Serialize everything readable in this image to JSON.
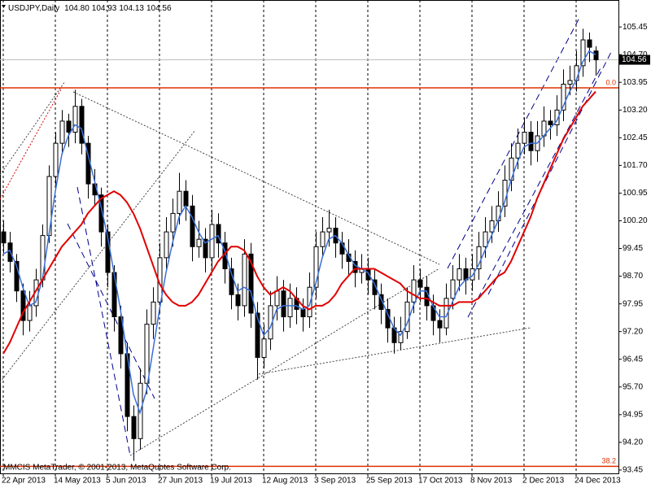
{
  "chart_data": {
    "type": "candlestick",
    "title": "USDJPY,Daily",
    "header_values": [
      "104.80",
      "104.93",
      "104.13",
      "104.56"
    ],
    "footer": "MMCIS MetaTrader, © 2001-2013, MetaQuotes Software Corp.",
    "ylim": [
      93.36,
      106.18
    ],
    "yticks": [
      93.45,
      {
        "value": 94.2,
        "label": "94.20"
      },
      94.95,
      {
        "value": 95.7,
        "label": "95.70"
      },
      96.45,
      {
        "value": 97.2,
        "label": "97.20"
      },
      97.95,
      {
        "value": 98.7,
        "label": "98.70"
      },
      99.45,
      {
        "value": 100.2,
        "label": "100.20"
      },
      100.95,
      {
        "value": 101.7,
        "label": "101.70"
      },
      102.45,
      {
        "value": 103.2,
        "label": "103.20"
      },
      103.95,
      {
        "value": 104.7,
        "label": "104.70"
      },
      105.45
    ],
    "xticks": [
      {
        "value": 0,
        "label": "22 Apr 2013"
      },
      {
        "value": 8,
        "label": "14 May 2013"
      },
      {
        "value": 16,
        "label": "5 Jun 2013"
      },
      {
        "value": 24,
        "label": "27 Jun 2013"
      },
      {
        "value": 32,
        "label": "19 Jul 2013"
      },
      {
        "value": 40,
        "label": "12 Aug 2013"
      },
      {
        "value": 48,
        "label": "3 Sep 2013"
      },
      {
        "value": 56,
        "label": "25 Sep 2013"
      },
      {
        "value": 64,
        "label": "17 Oct 2013"
      },
      {
        "value": 72,
        "label": "8 Nov 2013"
      },
      {
        "value": 80,
        "label": "2 Dec 2013"
      },
      {
        "value": 88,
        "label": "24 Dec 2013"
      }
    ],
    "grid_x": true,
    "fibo_levels": [
      {
        "value": 103.8,
        "label": "0.0"
      },
      {
        "value": 93.55,
        "label": "38.2"
      }
    ],
    "fibo_color": "#e03000",
    "last_price_color": "#c0c0c0",
    "ohlc": [
      [
        99.9,
        100.2,
        99.3,
        99.6
      ],
      [
        99.6,
        99.9,
        98.8,
        99.1
      ],
      [
        99.1,
        99.3,
        98.0,
        98.3
      ],
      [
        98.3,
        98.5,
        97.1,
        97.5
      ],
      [
        97.5,
        98.3,
        97.2,
        97.9
      ],
      [
        97.9,
        98.9,
        97.6,
        98.6
      ],
      [
        98.6,
        100.1,
        98.4,
        99.8
      ],
      [
        99.8,
        101.7,
        99.6,
        101.4
      ],
      [
        101.4,
        102.6,
        101.1,
        102.3
      ],
      [
        102.3,
        103.2,
        102.0,
        102.9
      ],
      [
        102.9,
        103.1,
        102.2,
        102.6
      ],
      [
        102.6,
        103.75,
        102.3,
        103.3
      ],
      [
        103.3,
        103.5,
        102.0,
        102.3
      ],
      [
        102.3,
        102.5,
        100.8,
        101.2
      ],
      [
        101.2,
        101.6,
        100.6,
        100.9
      ],
      [
        100.9,
        101.1,
        99.5,
        99.9
      ],
      [
        99.9,
        100.1,
        98.4,
        98.8
      ],
      [
        98.8,
        99.0,
        97.2,
        97.6
      ],
      [
        97.6,
        97.9,
        96.2,
        96.6
      ],
      [
        96.6,
        96.9,
        94.5,
        94.9
      ],
      [
        94.9,
        95.2,
        93.7,
        94.3
      ],
      [
        94.3,
        96.2,
        94.0,
        95.8
      ],
      [
        95.8,
        97.8,
        95.5,
        97.4
      ],
      [
        97.4,
        98.4,
        97.0,
        98.0
      ],
      [
        98.0,
        99.6,
        97.7,
        99.2
      ],
      [
        99.2,
        100.3,
        98.9,
        99.9
      ],
      [
        99.9,
        100.8,
        99.5,
        100.4
      ],
      [
        100.4,
        101.5,
        100.1,
        101.0
      ],
      [
        101.0,
        101.3,
        100.2,
        100.6
      ],
      [
        100.6,
        100.9,
        99.1,
        99.5
      ],
      [
        99.5,
        100.2,
        99.2,
        99.7
      ],
      [
        99.7,
        100.0,
        98.8,
        99.2
      ],
      [
        99.2,
        100.5,
        98.9,
        100.1
      ],
      [
        100.1,
        100.4,
        99.2,
        99.6
      ],
      [
        99.6,
        99.9,
        98.5,
        98.9
      ],
      [
        98.9,
        99.2,
        97.8,
        98.2
      ],
      [
        98.2,
        98.5,
        97.5,
        97.9
      ],
      [
        97.9,
        99.7,
        97.6,
        99.3
      ],
      [
        99.3,
        99.6,
        97.3,
        97.7
      ],
      [
        97.7,
        98.0,
        95.9,
        96.5
      ],
      [
        96.5,
        97.4,
        96.2,
        97.0
      ],
      [
        97.0,
        98.3,
        96.7,
        97.9
      ],
      [
        97.9,
        98.7,
        97.5,
        98.3
      ],
      [
        98.3,
        98.6,
        97.2,
        97.6
      ],
      [
        97.6,
        98.5,
        97.3,
        98.1
      ],
      [
        98.1,
        98.4,
        97.4,
        97.8
      ],
      [
        97.8,
        98.1,
        97.2,
        97.6
      ],
      [
        97.6,
        98.8,
        97.3,
        98.4
      ],
      [
        98.4,
        99.9,
        98.1,
        99.5
      ],
      [
        99.5,
        100.3,
        99.2,
        99.9
      ],
      [
        99.9,
        100.5,
        99.5,
        100.0
      ],
      [
        100.0,
        100.3,
        99.2,
        99.6
      ],
      [
        99.6,
        99.9,
        98.9,
        99.3
      ],
      [
        99.3,
        99.7,
        98.7,
        99.1
      ],
      [
        99.1,
        99.4,
        98.4,
        98.8
      ],
      [
        98.8,
        99.3,
        98.5,
        98.9
      ],
      [
        98.9,
        99.2,
        98.2,
        98.6
      ],
      [
        98.6,
        98.9,
        97.8,
        98.2
      ],
      [
        98.2,
        98.5,
        97.4,
        97.8
      ],
      [
        97.8,
        98.1,
        96.9,
        97.3
      ],
      [
        97.3,
        97.6,
        96.6,
        96.9
      ],
      [
        96.9,
        97.6,
        96.7,
        97.2
      ],
      [
        97.2,
        98.4,
        97.0,
        98.0
      ],
      [
        98.0,
        99.0,
        97.7,
        98.6
      ],
      [
        98.6,
        98.9,
        98.0,
        98.4
      ],
      [
        98.4,
        98.7,
        97.5,
        97.9
      ],
      [
        97.9,
        98.2,
        97.1,
        97.5
      ],
      [
        97.5,
        97.8,
        96.9,
        97.3
      ],
      [
        97.3,
        98.5,
        97.1,
        98.1
      ],
      [
        98.1,
        99.0,
        97.8,
        98.6
      ],
      [
        98.6,
        99.3,
        98.3,
        98.9
      ],
      [
        98.9,
        99.2,
        98.2,
        98.6
      ],
      [
        98.6,
        99.3,
        98.3,
        98.9
      ],
      [
        98.9,
        99.9,
        98.6,
        99.5
      ],
      [
        99.5,
        100.3,
        99.2,
        99.9
      ],
      [
        99.9,
        100.6,
        99.6,
        100.2
      ],
      [
        100.2,
        101.0,
        99.9,
        100.6
      ],
      [
        100.6,
        101.7,
        100.3,
        101.3
      ],
      [
        101.3,
        102.3,
        101.0,
        101.9
      ],
      [
        101.9,
        102.7,
        101.6,
        102.3
      ],
      [
        102.3,
        103.0,
        102.0,
        102.6
      ],
      [
        102.6,
        102.9,
        101.7,
        102.1
      ],
      [
        102.1,
        102.9,
        101.8,
        102.5
      ],
      [
        102.5,
        103.3,
        102.2,
        102.9
      ],
      [
        102.9,
        103.2,
        102.4,
        102.8
      ],
      [
        102.8,
        103.6,
        102.5,
        103.2
      ],
      [
        103.2,
        104.3,
        102.9,
        103.9
      ],
      [
        103.9,
        104.4,
        103.6,
        104.0
      ],
      [
        104.0,
        104.8,
        103.7,
        104.4
      ],
      [
        104.4,
        105.4,
        104.1,
        105.1
      ],
      [
        105.1,
        105.3,
        104.5,
        104.9
      ],
      [
        104.8,
        104.93,
        104.13,
        104.56
      ]
    ],
    "series": [
      {
        "color": "#3a6fd8",
        "values": [
          99.3,
          99.4,
          99.0,
          98.4,
          97.9,
          98.0,
          98.6,
          99.8,
          101.0,
          102.0,
          102.5,
          102.8,
          102.7,
          102.0,
          101.3,
          100.6,
          99.8,
          98.8,
          97.8,
          96.6,
          95.5,
          95.0,
          95.6,
          96.7,
          97.8,
          98.8,
          99.6,
          100.3,
          100.6,
          100.3,
          99.9,
          99.6,
          99.7,
          99.8,
          99.4,
          98.8,
          98.3,
          98.4,
          98.3,
          97.6,
          97.1,
          97.3,
          97.8,
          97.9,
          97.9,
          97.9,
          97.8,
          97.9,
          98.5,
          99.2,
          99.7,
          99.8,
          99.6,
          99.3,
          99.0,
          98.9,
          98.8,
          98.5,
          98.1,
          97.7,
          97.3,
          97.1,
          97.4,
          97.9,
          98.3,
          98.3,
          97.9,
          97.6,
          97.6,
          98.0,
          98.4,
          98.6,
          98.7,
          99.0,
          99.4,
          99.8,
          100.2,
          100.7,
          101.3,
          101.8,
          102.2,
          102.3,
          102.3,
          102.5,
          102.7,
          102.9,
          103.3,
          103.7,
          104.0,
          104.5,
          104.8,
          104.7
        ]
      },
      {
        "color": "#e00000",
        "values": [
          96.6,
          96.9,
          97.3,
          97.7,
          98.0,
          98.3,
          98.6,
          98.9,
          99.2,
          99.5,
          99.7,
          99.9,
          100.1,
          100.4,
          100.6,
          100.8,
          100.9,
          101.0,
          100.9,
          100.7,
          100.4,
          100.0,
          99.5,
          99.0,
          98.5,
          98.2,
          98.0,
          97.9,
          97.9,
          98.0,
          98.2,
          98.5,
          98.8,
          99.1,
          99.3,
          99.5,
          99.5,
          99.4,
          99.1,
          98.7,
          98.4,
          98.2,
          98.3,
          98.4,
          98.3,
          98.1,
          97.9,
          97.8,
          97.9,
          97.9,
          98.0,
          98.2,
          98.5,
          98.7,
          98.9,
          98.9,
          98.9,
          98.9,
          98.8,
          98.7,
          98.6,
          98.5,
          98.3,
          98.2,
          98.1,
          98.1,
          98.0,
          97.9,
          97.9,
          97.9,
          98.0,
          98.0,
          98.0,
          98.1,
          98.3,
          98.5,
          98.7,
          98.8,
          99.1,
          99.5,
          99.9,
          100.3,
          100.8,
          101.2,
          101.6,
          102.0,
          102.4,
          102.7,
          103.0,
          103.3,
          103.5,
          103.7
        ]
      }
    ]
  }
}
